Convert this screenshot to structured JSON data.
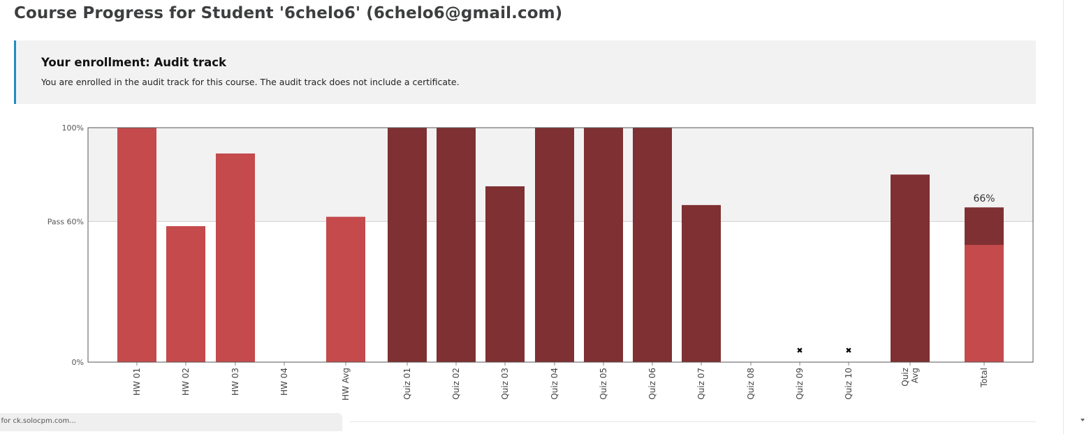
{
  "page": {
    "title": "Course Progress for Student '6chelo6' (6chelo6@gmail.com)"
  },
  "enrollment": {
    "heading": "Your enrollment: Audit track",
    "message": "You are enrolled in the audit track for this course. The audit track does not include a certificate."
  },
  "status_bar": {
    "text": "g for ck.solocpm.com..."
  },
  "colors": {
    "hw": "#c44a4c",
    "quiz": "#7f3032",
    "pass_band": "#f2f2f2",
    "accent": "#1f8ebf"
  },
  "chart_data": {
    "type": "bar",
    "ylim": [
      0,
      100
    ],
    "yticks": [
      {
        "value": 100,
        "label": "100%"
      },
      {
        "value": 60,
        "label": "Pass 60%"
      },
      {
        "value": 0,
        "label": "0%"
      }
    ],
    "pass_threshold": 60,
    "categories": [
      {
        "label": "HW 01",
        "value": 100,
        "series": "hw"
      },
      {
        "label": "HW 02",
        "value": 58,
        "series": "hw"
      },
      {
        "label": "HW 03",
        "value": 89,
        "series": "hw"
      },
      {
        "label": "HW 04",
        "value": 0,
        "series": "hw"
      },
      {
        "label": "HW Avg",
        "value": 62,
        "series": "hw"
      },
      {
        "label": "Quiz 01",
        "value": 100,
        "series": "quiz"
      },
      {
        "label": "Quiz 02",
        "value": 100,
        "series": "quiz"
      },
      {
        "label": "Quiz 03",
        "value": 75,
        "series": "quiz"
      },
      {
        "label": "Quiz 04",
        "value": 100,
        "series": "quiz"
      },
      {
        "label": "Quiz 05",
        "value": 100,
        "series": "quiz"
      },
      {
        "label": "Quiz 06",
        "value": 100,
        "series": "quiz"
      },
      {
        "label": "Quiz 07",
        "value": 67,
        "series": "quiz"
      },
      {
        "label": "Quiz 08",
        "value": 0,
        "series": "quiz"
      },
      {
        "label": "Quiz 09",
        "value": null,
        "series": "quiz",
        "dropped": true
      },
      {
        "label": "Quiz 10",
        "value": null,
        "series": "quiz",
        "dropped": true
      },
      {
        "label": "Quiz Avg",
        "value": 80,
        "series": "quiz"
      },
      {
        "label": "Total",
        "stacked": [
          {
            "series": "hw",
            "value": 50
          },
          {
            "series": "quiz",
            "value": 16
          }
        ],
        "value_label": "66%"
      }
    ]
  }
}
